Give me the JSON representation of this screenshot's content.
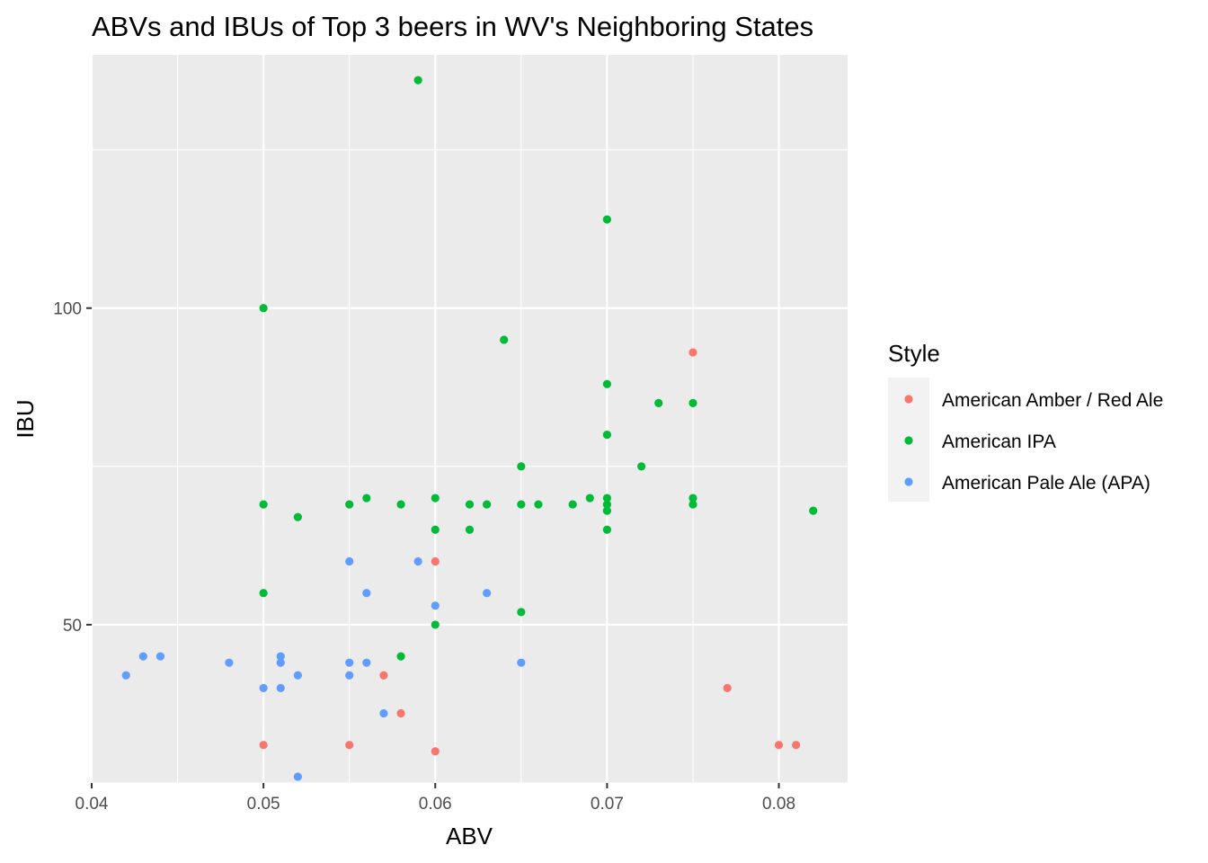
{
  "chart_data": {
    "type": "scatter",
    "title": "ABVs and IBUs of Top 3 beers in WV's Neighboring States",
    "xlabel": "ABV",
    "ylabel": "IBU",
    "xlim": [
      0.04,
      0.084
    ],
    "ylim": [
      25,
      140
    ],
    "x_ticks": [
      0.04,
      0.05,
      0.06,
      0.07,
      0.08
    ],
    "x_tick_labels": [
      "0.04",
      "0.05",
      "0.06",
      "0.07",
      "0.08"
    ],
    "y_ticks": [
      50,
      100
    ],
    "y_tick_labels": [
      "50",
      "100"
    ],
    "grid": true,
    "legend_title": "Style",
    "legend_position": "right",
    "series": [
      {
        "name": "American Amber / Red Ale",
        "color": "#F8766D",
        "points": [
          [
            0.075,
            93
          ],
          [
            0.06,
            60
          ],
          [
            0.057,
            42
          ],
          [
            0.077,
            40
          ],
          [
            0.058,
            36
          ],
          [
            0.05,
            31
          ],
          [
            0.055,
            31
          ],
          [
            0.08,
            31
          ],
          [
            0.081,
            31
          ],
          [
            0.06,
            30
          ]
        ]
      },
      {
        "name": "American IPA",
        "color": "#00BA38",
        "points": [
          [
            0.059,
            136
          ],
          [
            0.07,
            114
          ],
          [
            0.05,
            100
          ],
          [
            0.064,
            95
          ],
          [
            0.07,
            88
          ],
          [
            0.073,
            85
          ],
          [
            0.075,
            85
          ],
          [
            0.07,
            80
          ],
          [
            0.065,
            75
          ],
          [
            0.072,
            75
          ],
          [
            0.05,
            69
          ],
          [
            0.052,
            67
          ],
          [
            0.055,
            69
          ],
          [
            0.056,
            70
          ],
          [
            0.058,
            69
          ],
          [
            0.06,
            70
          ],
          [
            0.062,
            69
          ],
          [
            0.063,
            69
          ],
          [
            0.065,
            69
          ],
          [
            0.066,
            69
          ],
          [
            0.068,
            69
          ],
          [
            0.069,
            70
          ],
          [
            0.07,
            70
          ],
          [
            0.07,
            69
          ],
          [
            0.07,
            68
          ],
          [
            0.075,
            70
          ],
          [
            0.075,
            69
          ],
          [
            0.082,
            68
          ],
          [
            0.06,
            65
          ],
          [
            0.062,
            65
          ],
          [
            0.07,
            65
          ],
          [
            0.05,
            55
          ],
          [
            0.065,
            52
          ],
          [
            0.06,
            50
          ],
          [
            0.058,
            45
          ]
        ]
      },
      {
        "name": "American Pale Ale (APA)",
        "color": "#619CFF",
        "points": [
          [
            0.055,
            60
          ],
          [
            0.059,
            60
          ],
          [
            0.056,
            55
          ],
          [
            0.063,
            55
          ],
          [
            0.06,
            53
          ],
          [
            0.043,
            45
          ],
          [
            0.044,
            45
          ],
          [
            0.051,
            45
          ],
          [
            0.048,
            44
          ],
          [
            0.051,
            44
          ],
          [
            0.055,
            44
          ],
          [
            0.056,
            44
          ],
          [
            0.065,
            44
          ],
          [
            0.042,
            42
          ],
          [
            0.052,
            42
          ],
          [
            0.055,
            42
          ],
          [
            0.05,
            40
          ],
          [
            0.051,
            40
          ],
          [
            0.057,
            36
          ],
          [
            0.052,
            26
          ]
        ]
      }
    ]
  }
}
